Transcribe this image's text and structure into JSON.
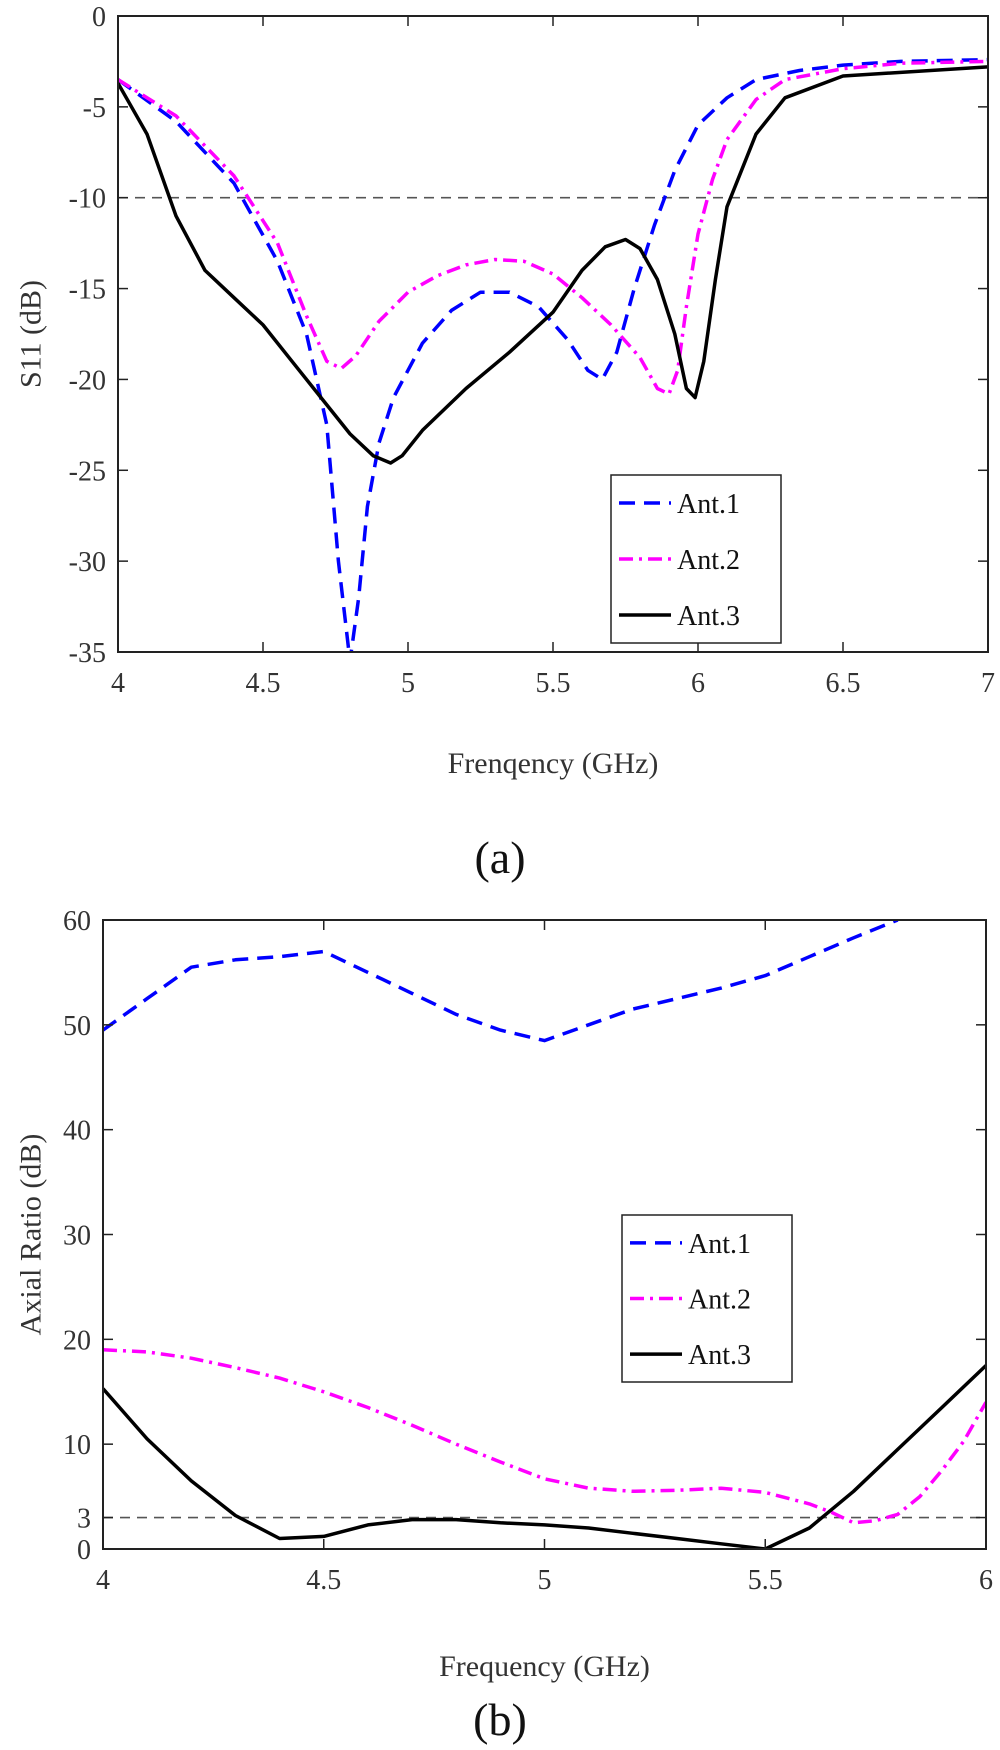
{
  "chart_data": [
    {
      "type": "line",
      "panel_label": "(a)",
      "title": "",
      "xlabel": "Frenqency (GHz)",
      "ylabel": "S11 (dB)",
      "xlim": [
        4,
        7
      ],
      "ylim": [
        -35,
        0
      ],
      "xticks": [
        4,
        4.5,
        5,
        5.5,
        6,
        6.5,
        7
      ],
      "xtick_labels": [
        "4",
        "4.5",
        "5",
        "5.5",
        "6",
        "6.5",
        "7"
      ],
      "yticks": [
        0,
        -5,
        -10,
        -15,
        -20,
        -25,
        -30,
        -35
      ],
      "ytick_labels": [
        "0",
        "-5",
        "-10",
        "-15",
        "-20",
        "-25",
        "-30",
        "-35"
      ],
      "grid": false,
      "legend_position": "bottom-right",
      "reference_line": {
        "y": -10,
        "style": "dashed",
        "color": "#555555"
      },
      "series": [
        {
          "name": "Ant.1",
          "color": "#0000ff",
          "dash": "dashed",
          "x": [
            4.0,
            4.2,
            4.4,
            4.55,
            4.65,
            4.72,
            4.76,
            4.8,
            4.83,
            4.86,
            4.9,
            4.95,
            5.05,
            5.15,
            5.25,
            5.35,
            5.45,
            5.55,
            5.62,
            5.67,
            5.72,
            5.78,
            5.85,
            5.92,
            6.0,
            6.1,
            6.2,
            6.35,
            6.5,
            6.7,
            7.0
          ],
          "y": [
            -3.5,
            -5.8,
            -9.2,
            -13.5,
            -17.5,
            -22.5,
            -30.0,
            -35.5,
            -32.0,
            -27.0,
            -23.5,
            -21.0,
            -18.0,
            -16.2,
            -15.2,
            -15.2,
            -16.0,
            -17.8,
            -19.5,
            -20.0,
            -18.5,
            -15.0,
            -11.5,
            -8.5,
            -6.0,
            -4.5,
            -3.5,
            -3.0,
            -2.7,
            -2.5,
            -2.4
          ]
        },
        {
          "name": "Ant.2",
          "color": "#ff00ff",
          "dash": "dashdot",
          "x": [
            4.0,
            4.2,
            4.4,
            4.55,
            4.65,
            4.72,
            4.77,
            4.82,
            4.9,
            5.0,
            5.1,
            5.2,
            5.3,
            5.4,
            5.5,
            5.6,
            5.7,
            5.8,
            5.86,
            5.9,
            5.93,
            5.96,
            6.0,
            6.05,
            6.1,
            6.2,
            6.3,
            6.5,
            6.7,
            7.0
          ],
          "y": [
            -3.5,
            -5.5,
            -8.8,
            -12.5,
            -16.5,
            -19.0,
            -19.4,
            -18.7,
            -16.8,
            -15.2,
            -14.3,
            -13.7,
            -13.4,
            -13.5,
            -14.2,
            -15.5,
            -17.0,
            -18.8,
            -20.5,
            -20.8,
            -19.5,
            -16.0,
            -12.0,
            -9.0,
            -6.8,
            -4.6,
            -3.5,
            -2.9,
            -2.6,
            -2.5
          ]
        },
        {
          "name": "Ant.3",
          "color": "#000000",
          "dash": "solid",
          "x": [
            4.0,
            4.1,
            4.2,
            4.3,
            4.4,
            4.5,
            4.6,
            4.7,
            4.8,
            4.88,
            4.94,
            4.98,
            5.05,
            5.2,
            5.35,
            5.5,
            5.6,
            5.68,
            5.75,
            5.8,
            5.86,
            5.92,
            5.96,
            5.99,
            6.02,
            6.06,
            6.1,
            6.2,
            6.3,
            6.5,
            7.0
          ],
          "y": [
            -3.7,
            -6.5,
            -11.0,
            -14.0,
            -15.5,
            -17.0,
            -19.0,
            -21.0,
            -23.0,
            -24.2,
            -24.6,
            -24.2,
            -22.8,
            -20.5,
            -18.5,
            -16.3,
            -14.0,
            -12.7,
            -12.3,
            -12.8,
            -14.5,
            -17.5,
            -20.5,
            -21.0,
            -19.0,
            -14.5,
            -10.5,
            -6.5,
            -4.5,
            -3.3,
            -2.8
          ]
        }
      ],
      "legend": [
        "Ant.1",
        "Ant.2",
        "Ant.3"
      ]
    },
    {
      "type": "line",
      "panel_label": "(b)",
      "title": "",
      "xlabel": "Frequency (GHz)",
      "ylabel": "Axial Ratio (dB)",
      "xlim": [
        4,
        6
      ],
      "ylim": [
        0,
        60
      ],
      "xticks": [
        4,
        4.5,
        5,
        5.5,
        6
      ],
      "xtick_labels": [
        "4",
        "4.5",
        "5",
        "5.5",
        "6"
      ],
      "yticks": [
        0,
        3,
        10,
        20,
        30,
        40,
        50,
        60
      ],
      "ytick_labels": [
        "0",
        "3",
        "10",
        "20",
        "30",
        "40",
        "50",
        "60"
      ],
      "grid": false,
      "legend_position": "center-right",
      "reference_line": {
        "y": 3,
        "style": "dashed",
        "color": "#555555"
      },
      "series": [
        {
          "name": "Ant.1",
          "color": "#0000ff",
          "dash": "dashed",
          "x": [
            4.0,
            4.1,
            4.2,
            4.3,
            4.4,
            4.5,
            4.6,
            4.7,
            4.8,
            4.9,
            5.0,
            5.1,
            5.2,
            5.3,
            5.4,
            5.5,
            5.6,
            5.7,
            5.8
          ],
          "y": [
            49.5,
            52.5,
            55.5,
            56.2,
            56.5,
            57.0,
            55.0,
            53.0,
            51.0,
            49.5,
            48.5,
            50.0,
            51.5,
            52.5,
            53.5,
            54.7,
            56.5,
            58.3,
            60.0
          ]
        },
        {
          "name": "Ant.2",
          "color": "#ff00ff",
          "dash": "dashdot",
          "x": [
            4.0,
            4.1,
            4.2,
            4.3,
            4.4,
            4.5,
            4.6,
            4.7,
            4.8,
            4.9,
            5.0,
            5.1,
            5.2,
            5.3,
            5.4,
            5.5,
            5.6,
            5.65,
            5.7,
            5.75,
            5.8,
            5.85,
            5.9,
            5.95,
            6.0
          ],
          "y": [
            19.0,
            18.8,
            18.2,
            17.3,
            16.3,
            15.0,
            13.5,
            11.8,
            10.0,
            8.3,
            6.7,
            5.8,
            5.5,
            5.6,
            5.8,
            5.4,
            4.3,
            3.5,
            2.5,
            2.7,
            3.3,
            5.0,
            7.5,
            10.3,
            14.0
          ]
        },
        {
          "name": "Ant.3",
          "color": "#000000",
          "dash": "solid",
          "x": [
            4.0,
            4.1,
            4.2,
            4.3,
            4.4,
            4.5,
            4.6,
            4.7,
            4.8,
            4.9,
            5.0,
            5.1,
            5.2,
            5.3,
            5.4,
            5.5,
            5.6,
            5.7,
            5.8,
            5.9,
            6.0
          ],
          "y": [
            15.3,
            10.5,
            6.5,
            3.2,
            1.0,
            1.2,
            2.3,
            2.8,
            2.8,
            2.5,
            2.3,
            2.0,
            1.5,
            1.0,
            0.5,
            0.0,
            2.0,
            5.5,
            9.5,
            13.5,
            17.5
          ]
        }
      ],
      "legend": [
        "Ant.1",
        "Ant.2",
        "Ant.3"
      ]
    }
  ]
}
